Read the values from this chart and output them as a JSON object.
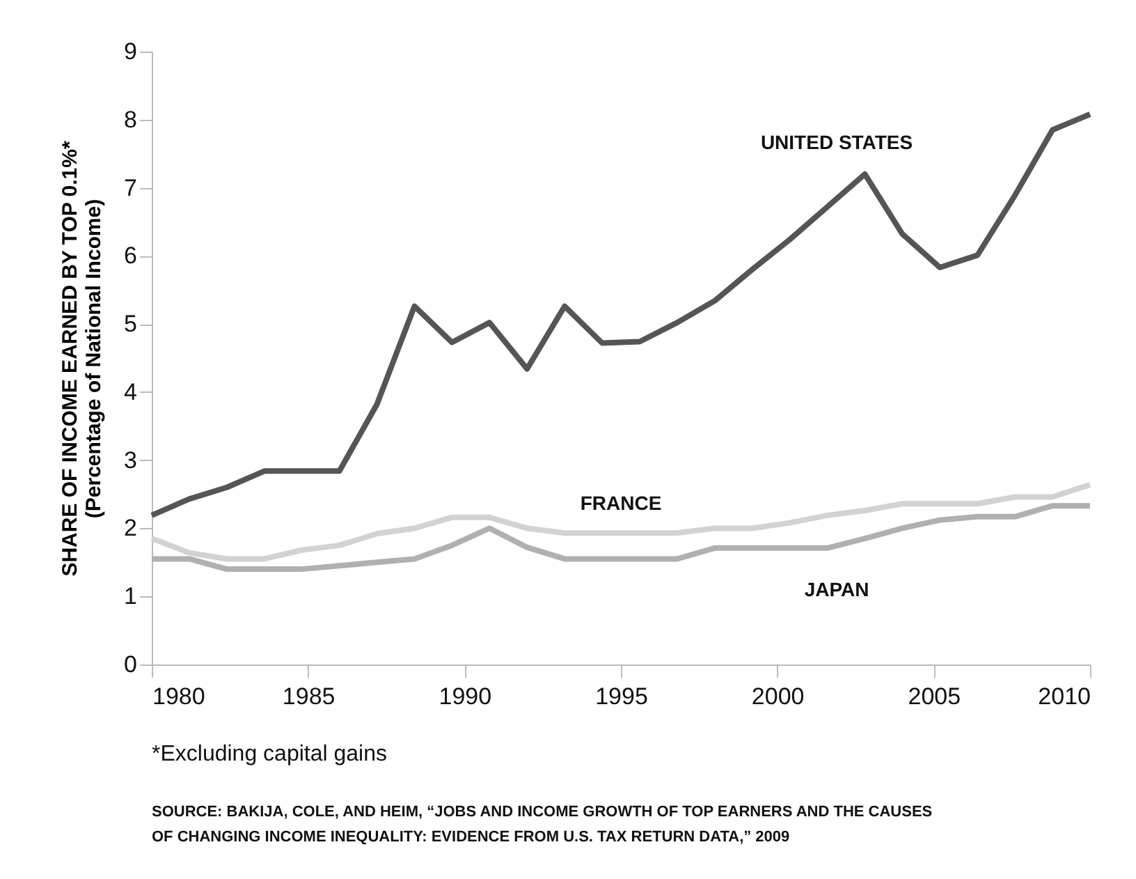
{
  "chart_data": {
    "type": "line",
    "ylabel": "SHARE OF INCOME EARNED BY TOP 0.1%*\n(Percentage of National Income)",
    "x": [
      1980,
      1981.2,
      1982.4,
      1983.6,
      1984.8,
      1986,
      1987.2,
      1988.4,
      1989.6,
      1990.8,
      1992,
      1993.2,
      1994.4,
      1995.6,
      1996.8,
      1998,
      1999.2,
      2000.4,
      2001.6,
      2002.8,
      2004,
      2005.2,
      2006.4,
      2007.6,
      2008.8,
      2010
    ],
    "series": [
      {
        "name": "UNITED STATES",
        "color": "#555555",
        "values": [
          2.19,
          2.43,
          2.6,
          2.84,
          2.84,
          2.84,
          3.82,
          5.26,
          4.73,
          5.02,
          4.34,
          5.26,
          4.72,
          4.74,
          5.02,
          5.34,
          5.8,
          6.24,
          6.72,
          7.2,
          6.32,
          5.83,
          6.01,
          6.89,
          7.85,
          8.08
        ]
      },
      {
        "name": "FRANCE",
        "color": "#d2d2d2",
        "values": [
          1.85,
          1.64,
          1.55,
          1.55,
          1.68,
          1.75,
          1.92,
          2.0,
          2.16,
          2.16,
          2.0,
          1.93,
          1.93,
          1.93,
          1.93,
          2.0,
          2.0,
          2.08,
          2.19,
          2.26,
          2.36,
          2.36,
          2.36,
          2.46,
          2.46,
          2.64
        ]
      },
      {
        "name": "JAPAN",
        "color": "#b0b0b0",
        "values": [
          1.55,
          1.55,
          1.4,
          1.4,
          1.4,
          1.45,
          1.5,
          1.55,
          1.75,
          2.0,
          1.72,
          1.55,
          1.55,
          1.55,
          1.55,
          1.71,
          1.71,
          1.71,
          1.71,
          1.85,
          2.0,
          2.12,
          2.17,
          2.17,
          2.33,
          2.33
        ]
      }
    ],
    "xlim": [
      1980,
      2010
    ],
    "xticks": [
      1980,
      1985,
      1990,
      1995,
      2000,
      2005,
      2010
    ],
    "ylim": [
      0,
      9
    ],
    "yticks": [
      0,
      1,
      2,
      3,
      4,
      5,
      6,
      7,
      8,
      9
    ],
    "grid": false,
    "legend": false,
    "line_style": "solid",
    "marker": "none",
    "annotations": [
      "*Excluding capital gains",
      "SOURCE: BAKIJA, COLE, AND HEIM, “JOBS AND INCOME GROWTH OF TOP EARNERS AND THE CAUSES\nOF CHANGING INCOME INEQUALITY: EVIDENCE FROM U.S. TAX RETURN DATA,” 2009"
    ]
  }
}
